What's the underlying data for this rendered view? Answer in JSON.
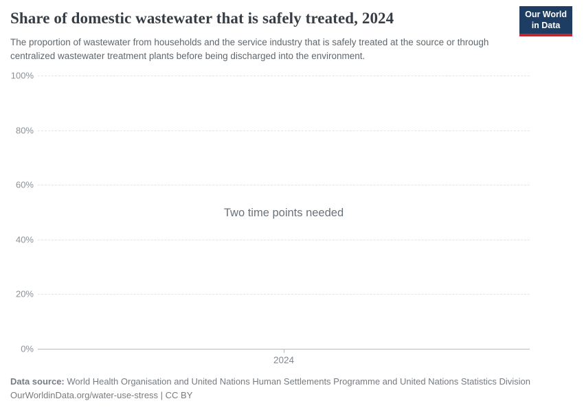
{
  "header": {
    "title": "Share of domestic wastewater that is safely treated, 2024",
    "subtitle": "The proportion of wastewater from households and the service industry that is safely treated at the source or through centralized wastewater treatment plants before being discharged into the environment.",
    "logo": {
      "line1": "Our World",
      "line2": "in Data",
      "bg_color": "#1d3d63",
      "stripe_color": "#c0272c",
      "text_color": "#ffffff"
    }
  },
  "chart_data": {
    "type": "line",
    "title": "Share of domestic wastewater that is safely treated, 2024",
    "series": [],
    "categories": [
      2024
    ],
    "xticks": [
      "2024"
    ],
    "yticks": [
      "100%",
      "80%",
      "60%",
      "40%",
      "20%",
      "0%"
    ],
    "ylim": [
      0,
      100
    ],
    "xlabel": "",
    "ylabel": "",
    "grid": "horizontal-dashed",
    "legend": "none",
    "empty_state_message": "Two time points needed",
    "note": "Empty chart: no data series plotted, only gridlines and an empty-state message are shown"
  },
  "footer": {
    "datasource_label": "Data source:",
    "datasource_text": "World Health Organisation and United Nations Human Settlements Programme and United Nations Statistics Division",
    "license_line": "OurWorldinData.org/water-use-stress | CC BY"
  },
  "colors": {
    "title_text": "#373d45",
    "subtitle_text": "#5f676d",
    "axis_label_text": "#8b9198",
    "gridline": "#e2e4e7",
    "axis_line": "#b7babd",
    "footer_text": "#767b80"
  }
}
